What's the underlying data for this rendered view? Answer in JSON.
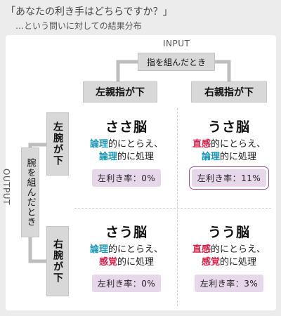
{
  "header": {
    "title": "「あなたの利き手はどちらですか？」",
    "subtitle": "…という問いに対しての結果分布"
  },
  "axes": {
    "input_label": "INPUT",
    "output_label": "OUTPUT",
    "input_main": "指を組んだとき",
    "input_left": "左親指が下",
    "input_right": "右親指が下",
    "output_main": "腕を組んだとき",
    "output_top": "左腕が下",
    "output_bottom": "右腕が下"
  },
  "cells": [
    {
      "name": "ささ脳",
      "l1_kw": "論理",
      "l1_rest": "的にとらえ、",
      "l2_kw": "論理",
      "l2_rest": "的に処理",
      "rate": "左利き率：0%"
    },
    {
      "name": "うさ脳",
      "l1_kw": "直感",
      "l1_rest": "的にとらえ、",
      "l2_kw": "論理",
      "l2_rest": "的に処理",
      "rate": "左利き率：11%"
    },
    {
      "name": "さう脳",
      "l1_kw": "論理",
      "l1_rest": "的にとらえ、",
      "l2_kw": "感覚",
      "l2_rest": "的に処理",
      "rate": "左利き率：0%"
    },
    {
      "name": "うう脳",
      "l1_kw": "直感",
      "l1_rest": "的にとらえ、",
      "l2_kw": "感覚",
      "l2_rest": "的に処理",
      "rate": "左利き率：3%"
    }
  ],
  "colors": {
    "logic": "#1a97b5",
    "intuition_sense": "#d6204a",
    "rate_bg": "#e7d7ea",
    "highlight": "#a64a8f"
  }
}
